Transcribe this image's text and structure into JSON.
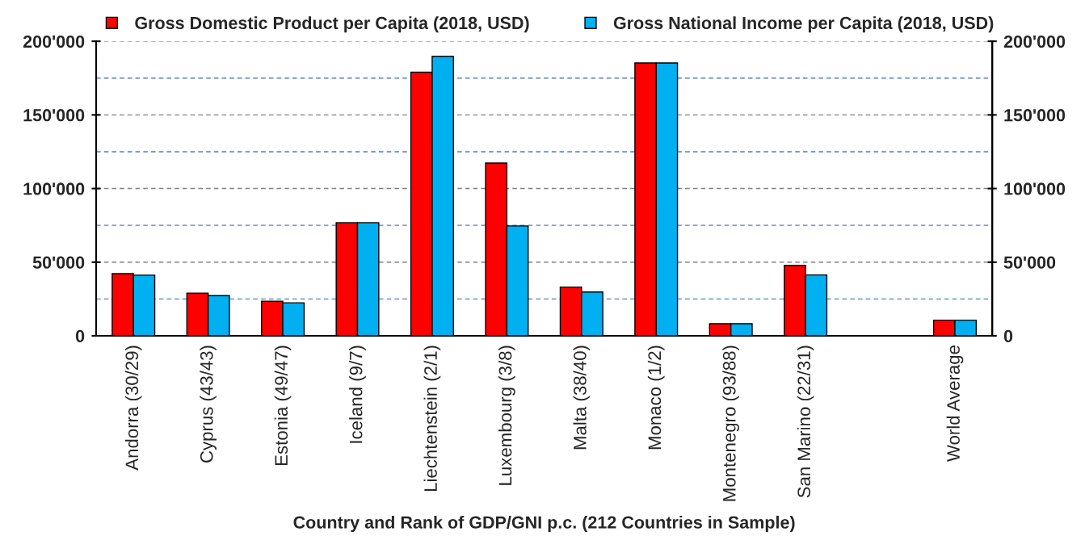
{
  "chart_data": {
    "type": "bar",
    "categories": [
      "Andorra (30/29)",
      "Cyprus (43/43)",
      "Estonia (49/47)",
      "Iceland (9/7)",
      "Liechtenstein (2/1)",
      "Luxembourg (3/8)",
      "Malta (38/40)",
      "Monaco (1/2)",
      "Montenegro (93/88)",
      "San Marino (22/31)",
      null,
      "World Average"
    ],
    "series": [
      {
        "name": "Gross Domestic Product per Capita (2018, USD)",
        "color": "#ff0000",
        "values": [
          42200,
          29000,
          23400,
          76800,
          179000,
          117300,
          33100,
          185300,
          8200,
          47800,
          null,
          10600
        ]
      },
      {
        "name": "Gross National Income per Capita (2018, USD)",
        "color": "#00b0f0",
        "values": [
          41200,
          27300,
          22400,
          76800,
          189800,
          74600,
          29700,
          185300,
          8200,
          41300,
          null,
          10600
        ]
      }
    ],
    "xlabel": "Country and Rank of GDP/GNI p.c. (212 Countries in Sample)",
    "ylim": [
      0,
      200000
    ],
    "yticks": [
      0,
      {
        "value": 50000,
        "label": "50'000"
      },
      {
        "value": 100000,
        "label": "100'000"
      },
      {
        "value": 150000,
        "label": "150'000"
      },
      {
        "value": 200000,
        "label": "200'000"
      }
    ],
    "y2lim": [
      0,
      200000
    ],
    "y2ticks": [
      0,
      {
        "value": 50000,
        "label": "50'000"
      },
      {
        "value": 100000,
        "label": "100'000"
      },
      {
        "value": 150000,
        "label": "150'000"
      },
      {
        "value": 200000,
        "label": "200'000"
      }
    ],
    "grid": "y",
    "legend": "top",
    "ref_lines": [
      {
        "axis": "y",
        "value": 25000,
        "color": "#4f81bd",
        "line_style": "dashed"
      },
      {
        "axis": "y",
        "value": 75000,
        "color": "#4f81bd",
        "line_style": "dashed"
      },
      {
        "axis": "y",
        "value": 125000,
        "color": "#4f81bd",
        "line_style": "dashed"
      },
      {
        "axis": "y",
        "value": 175000,
        "color": "#4f81bd",
        "line_style": "dashed"
      }
    ]
  }
}
